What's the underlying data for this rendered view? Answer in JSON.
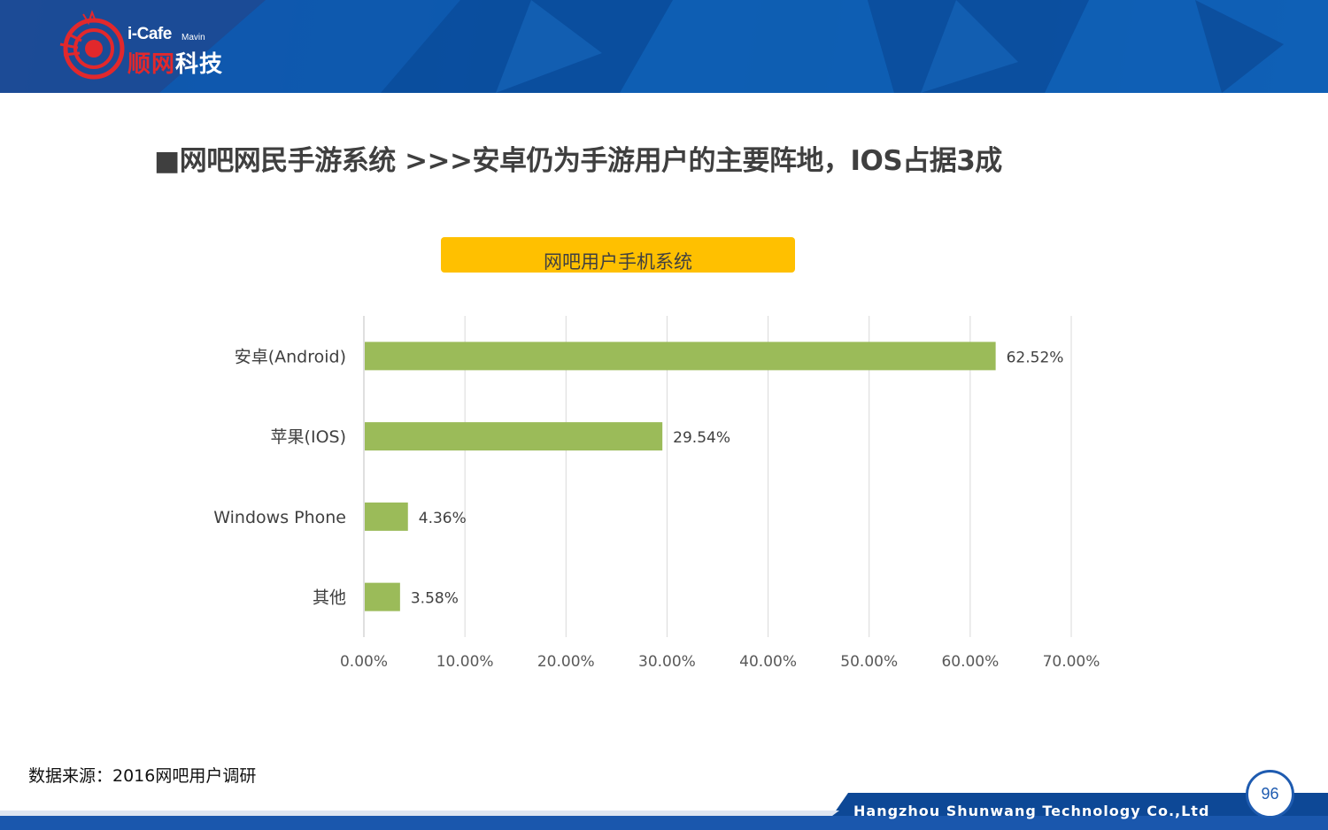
{
  "header": {
    "brand": "i-Cafe",
    "brand_sub": "Mavin",
    "brand_cn_red": "顺网",
    "brand_cn_white": "科技"
  },
  "slide_title": "■网吧网民手游系统   >>>安卓仍为手游用户的主要阵地，IOS占据3成",
  "chart_data": {
    "type": "bar",
    "orientation": "horizontal",
    "title": "网吧用户手机系统",
    "categories": [
      "安卓(Android)",
      "苹果(IOS)",
      "Windows Phone",
      "其他"
    ],
    "values": [
      62.52,
      29.54,
      4.36,
      3.58
    ],
    "value_labels": [
      "62.52%",
      "29.54%",
      "4.36%",
      "3.58%"
    ],
    "xlim": [
      0,
      70
    ],
    "x_ticks": [
      "0.00%",
      "10.00%",
      "20.00%",
      "30.00%",
      "40.00%",
      "50.00%",
      "60.00%",
      "70.00%"
    ],
    "grid": "vertical",
    "bar_color": "#9bbb59",
    "title_bg": "#ffc000"
  },
  "source": "数据来源：2016网吧用户调研",
  "footer": {
    "company": "Hangzhou Shunwang Technology Co.,Ltd",
    "page": "96"
  }
}
